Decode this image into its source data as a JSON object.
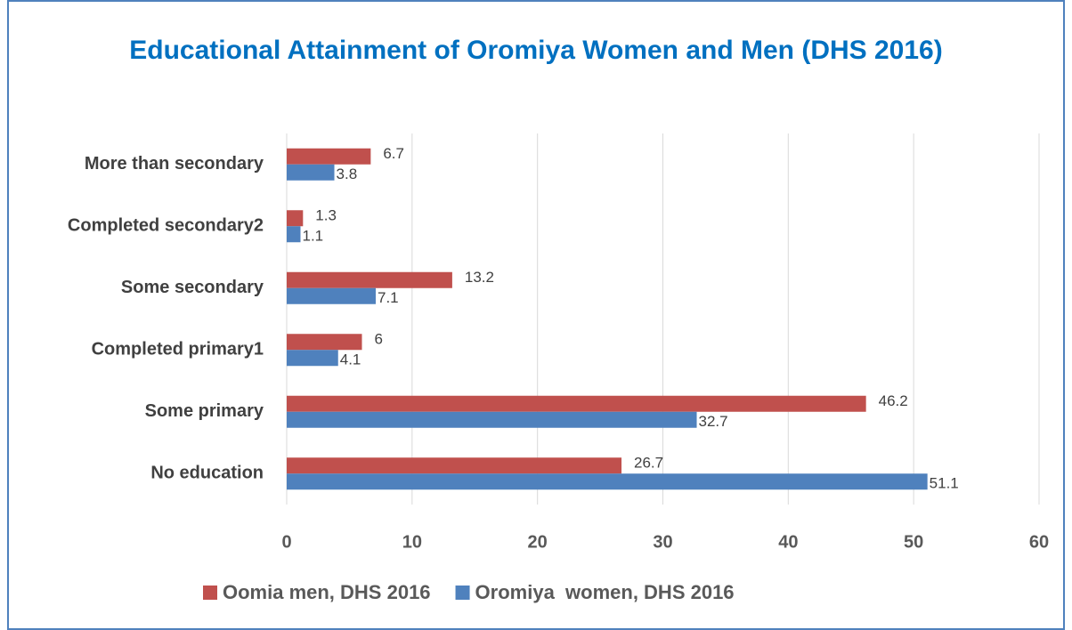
{
  "chart_data": {
    "type": "bar",
    "orientation": "horizontal",
    "title": "Educational Attainment of Oromiya Women and Men (DHS 2016)",
    "categories": [
      "More than secondary",
      "Completed secondary2",
      "Some secondary",
      "Completed primary1",
      "Some primary",
      "No education"
    ],
    "series": [
      {
        "name": "Oomia men, DHS 2016",
        "color": "#c0504d",
        "values": [
          6.7,
          1.3,
          13.2,
          6,
          46.2,
          26.7
        ]
      },
      {
        "name": "Oromiya  women, DHS 2016",
        "color": "#4f81bd",
        "values": [
          3.8,
          1.1,
          7.1,
          4.1,
          32.7,
          51.1
        ]
      }
    ],
    "xlim": [
      0,
      60
    ],
    "xticks": [
      0,
      10,
      20,
      30,
      40,
      50,
      60
    ],
    "grid": true,
    "legend": "bottom"
  }
}
